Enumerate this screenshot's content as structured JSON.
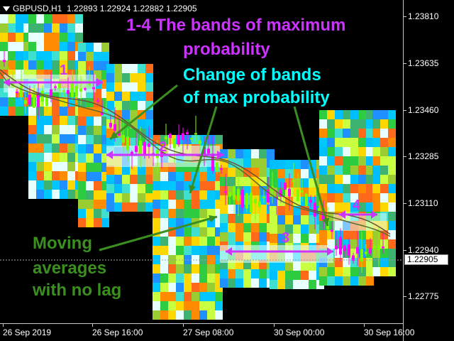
{
  "header": {
    "symbol": "GBPUSD,H1",
    "ohlc": "1.22893 1.22924 1.22882 1.22905"
  },
  "price_axis": {
    "labels": [
      "1.23810",
      "1.23635",
      "1.23460",
      "1.23285",
      "1.23110",
      "1.22940",
      "1.22775"
    ],
    "current_price": "1.22905"
  },
  "time_axis": {
    "labels": [
      "26 Sep 2019",
      "26 Sep 16:00",
      "27 Sep 08:00",
      "30 Sep 00:00",
      "30 Sep 16:00"
    ]
  },
  "annotations": {
    "title_line1": "1-4 The bands of maximum",
    "title_line2": "probability",
    "change_line1": "Change of bands",
    "change_line2": "of max probability",
    "ma_line1": "Moving",
    "ma_line2": "averages",
    "ma_line3": "with no lag",
    "band1": "1",
    "band2": "2",
    "band3": "3",
    "band4": "4"
  },
  "colors": {
    "background": "#000000",
    "annotation_purple": "#cc33ff",
    "annotation_cyan": "#00ffff",
    "annotation_green": "#3a8f1f",
    "bull_candle": "#7cfc00",
    "bear_candle": "#ff00ff"
  }
}
